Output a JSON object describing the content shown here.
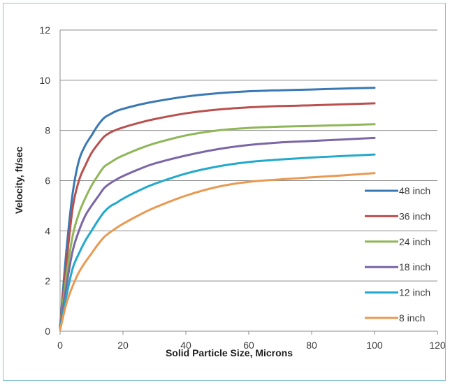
{
  "chart_data": {
    "type": "line",
    "title": "",
    "xlabel": "Solid Particle Size, Microns",
    "ylabel": "Velocity, ft/sec",
    "xlim": [
      0,
      120
    ],
    "ylim": [
      0,
      12
    ],
    "xticks": [
      0,
      20,
      40,
      60,
      80,
      100,
      120
    ],
    "yticks": [
      0,
      2,
      4,
      6,
      8,
      10,
      12
    ],
    "grid": "horizontal",
    "legend": "right",
    "x": [
      0,
      2,
      4,
      6,
      8,
      10,
      12,
      14,
      16,
      18,
      20,
      25,
      30,
      40,
      50,
      60,
      70,
      80,
      90,
      100
    ],
    "series": [
      {
        "name": "48 inch",
        "color": "#3a78b4",
        "values": [
          0.2,
          3.2,
          5.5,
          6.8,
          7.4,
          7.8,
          8.2,
          8.5,
          8.65,
          8.78,
          8.86,
          9.02,
          9.15,
          9.35,
          9.48,
          9.56,
          9.6,
          9.63,
          9.67,
          9.7
        ]
      },
      {
        "name": "36 inch",
        "color": "#b9504e",
        "values": [
          0.2,
          2.7,
          4.9,
          6.0,
          6.6,
          7.1,
          7.45,
          7.75,
          7.92,
          8.03,
          8.12,
          8.3,
          8.45,
          8.68,
          8.83,
          8.92,
          8.97,
          9.0,
          9.04,
          9.08
        ]
      },
      {
        "name": "24 inch",
        "color": "#8fb657",
        "values": [
          0.15,
          2.2,
          3.8,
          4.7,
          5.3,
          5.8,
          6.2,
          6.55,
          6.72,
          6.88,
          7.0,
          7.26,
          7.48,
          7.8,
          8.0,
          8.1,
          8.15,
          8.18,
          8.21,
          8.25
        ]
      },
      {
        "name": "18 inch",
        "color": "#7b66a6",
        "values": [
          0.15,
          1.8,
          3.2,
          4.0,
          4.6,
          5.0,
          5.35,
          5.7,
          5.9,
          6.05,
          6.18,
          6.45,
          6.68,
          7.0,
          7.25,
          7.42,
          7.52,
          7.58,
          7.64,
          7.7
        ]
      },
      {
        "name": "12 inch",
        "color": "#22a9cc",
        "values": [
          0.1,
          1.4,
          2.5,
          3.1,
          3.6,
          4.0,
          4.4,
          4.75,
          4.98,
          5.12,
          5.28,
          5.6,
          5.87,
          6.28,
          6.56,
          6.74,
          6.84,
          6.92,
          6.98,
          7.04
        ]
      },
      {
        "name": "8 inch",
        "color": "#e89a52",
        "values": [
          0.05,
          1.1,
          1.8,
          2.35,
          2.75,
          3.1,
          3.45,
          3.75,
          3.95,
          4.12,
          4.28,
          4.62,
          4.92,
          5.4,
          5.75,
          5.95,
          6.05,
          6.13,
          6.21,
          6.3
        ]
      }
    ]
  }
}
